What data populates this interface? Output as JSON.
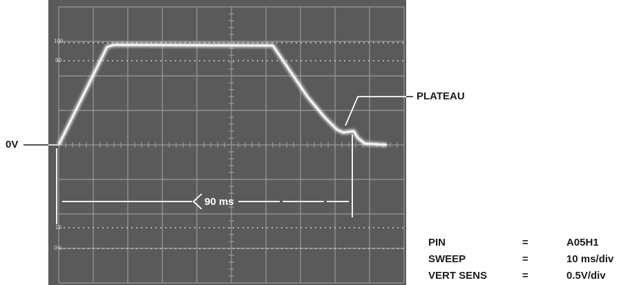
{
  "annotations": {
    "zero_volt": "0V",
    "plateau": "PLATEAU",
    "duration": "90 ms"
  },
  "graticule_labels": [
    "100",
    "90",
    "10",
    "0%"
  ],
  "settings": [
    [
      "PIN",
      "=",
      "A05H1"
    ],
    [
      "SWEEP",
      "=",
      "10 ms/div"
    ],
    [
      "VERT SENS",
      "=",
      "0.5V/div"
    ]
  ]
}
